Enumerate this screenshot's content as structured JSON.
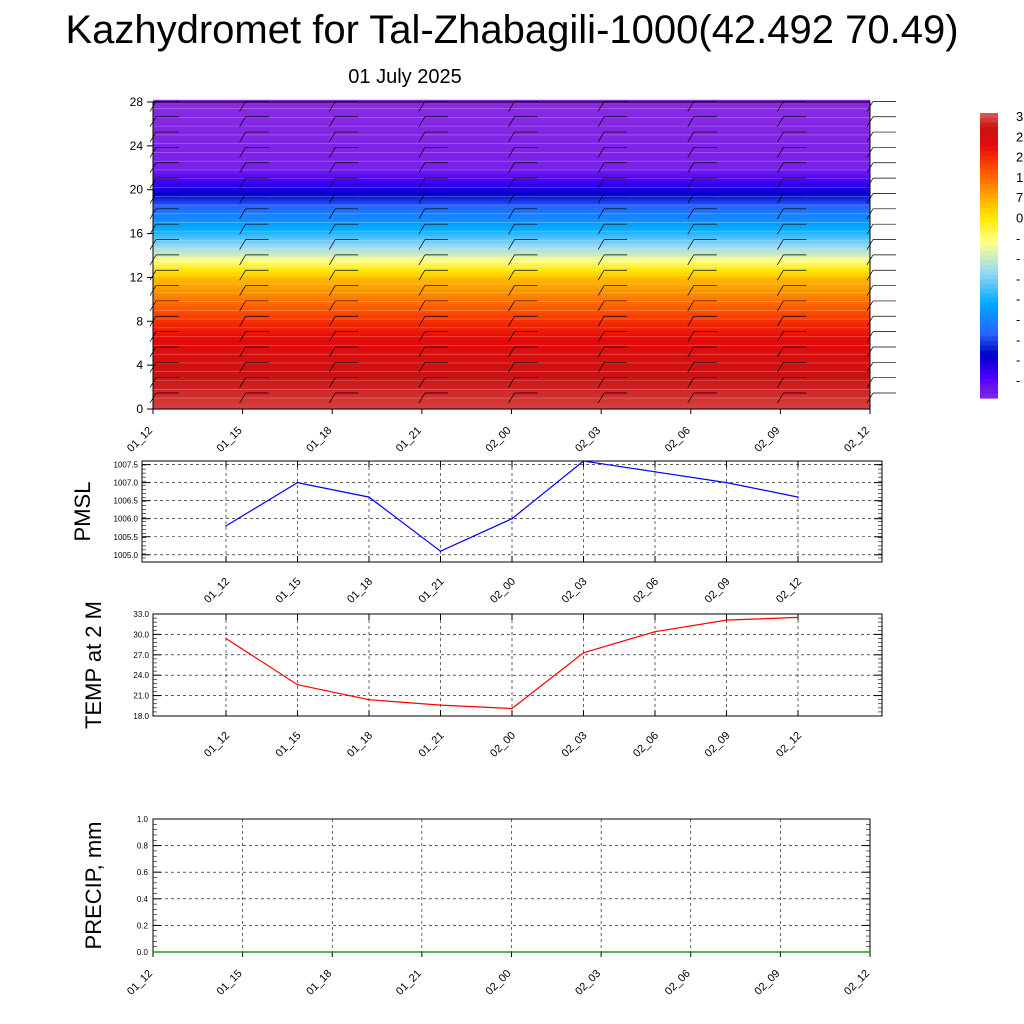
{
  "header": {
    "title": "Kazhydromet for Tal-Zhabagili-1000(42.492 70.49)",
    "date": "01 July 2025"
  },
  "chart_data": [
    {
      "type": "heatmap",
      "title": "",
      "x_tick_labels": [
        "01_12",
        "01_15",
        "01_18",
        "01_21",
        "02_00",
        "02_03",
        "02_06",
        "02_09",
        "02_12"
      ],
      "y_ticks": [
        0,
        4,
        8,
        12,
        16,
        20,
        24,
        28
      ],
      "ylim": [
        0,
        28
      ],
      "colorbar_labels": [
        "3",
        "2",
        "2",
        "1",
        "7",
        "0",
        "-",
        "-",
        "-",
        "-",
        "-",
        "-",
        "-",
        "-"
      ],
      "profile": [
        {
          "z": 0,
          "value": 33
        },
        {
          "z": 3,
          "value": 30
        },
        {
          "z": 6,
          "value": 25
        },
        {
          "z": 8,
          "value": 20
        },
        {
          "z": 10,
          "value": 12
        },
        {
          "z": 12,
          "value": 5
        },
        {
          "z": 13,
          "value": -2
        },
        {
          "z": 14,
          "value": -12
        },
        {
          "z": 16,
          "value": -25
        },
        {
          "z": 18.5,
          "value": -38
        },
        {
          "z": 20.5,
          "value": -50
        },
        {
          "z": 22,
          "value": -58
        },
        {
          "z": 28,
          "value": -60
        }
      ],
      "wind_barbs": true
    },
    {
      "type": "line",
      "ylabel": "PMSL",
      "x": [
        "01_12",
        "01_15",
        "01_18",
        "01_21",
        "02_00",
        "02_03",
        "02_06",
        "02_09",
        "02_12"
      ],
      "values": [
        1005.8,
        1007.0,
        1006.6,
        1005.1,
        1006.0,
        1007.6,
        1007.3,
        1007.0,
        1006.6
      ],
      "y_ticks": [
        "1005.0",
        "1005.5",
        "1006.0",
        "1006.5",
        "1007.0",
        "1007.5"
      ],
      "ylim": [
        1004.8,
        1007.6
      ],
      "color": "#0000ff",
      "grid": true
    },
    {
      "type": "line",
      "ylabel": "TEMP at 2 M",
      "x": [
        "01_12",
        "01_15",
        "01_18",
        "01_21",
        "02_00",
        "02_03",
        "02_06",
        "02_09",
        "02_12"
      ],
      "values": [
        29.4,
        22.6,
        20.4,
        19.6,
        19.1,
        27.3,
        30.4,
        32.1,
        32.5
      ],
      "y_ticks": [
        "18.0",
        "21.0",
        "24.0",
        "27.0",
        "30.0",
        "33.0"
      ],
      "ylim": [
        18,
        33
      ],
      "color": "#ff0000",
      "grid": true
    },
    {
      "type": "line",
      "ylabel": "PRECIP, mm",
      "x": [
        "01_12",
        "01_15",
        "01_18",
        "01_21",
        "02_00",
        "02_03",
        "02_06",
        "02_09",
        "02_12"
      ],
      "values": [
        0,
        0,
        0,
        0,
        0,
        0,
        0,
        0,
        0
      ],
      "y_ticks": [
        "0.0",
        "0.2",
        "0.4",
        "0.6",
        "0.8",
        "1.0"
      ],
      "ylim": [
        0,
        1
      ],
      "color": "#008000",
      "grid": true
    }
  ]
}
